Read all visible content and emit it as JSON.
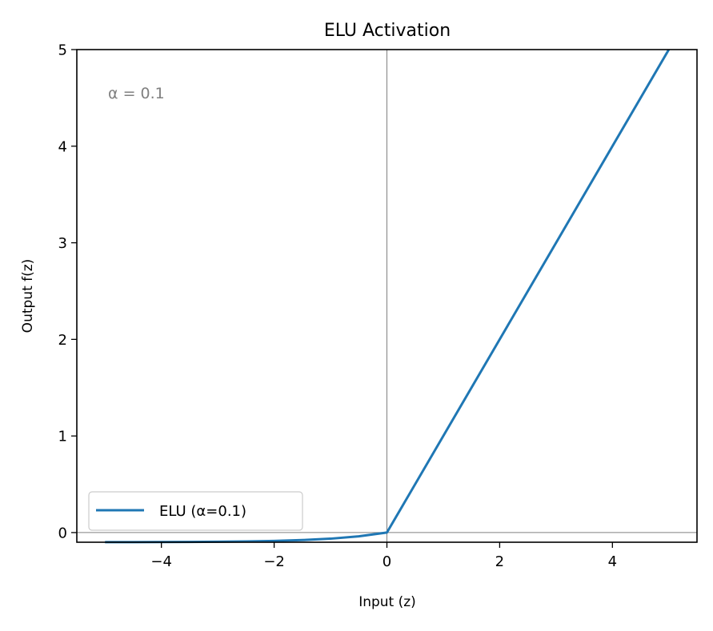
{
  "chart_data": {
    "type": "line",
    "title": "ELU Activation",
    "xlabel": "Input (z)",
    "ylabel": "Output f(z)",
    "xlim": [
      -5.5,
      5.5
    ],
    "ylim": [
      -0.1,
      5
    ],
    "xticks": [
      {
        "value": -4,
        "label": "−4"
      },
      {
        "value": -2,
        "label": "−2"
      },
      {
        "value": 0,
        "label": "0"
      },
      {
        "value": 2,
        "label": "2"
      },
      {
        "value": 4,
        "label": "4"
      }
    ],
    "yticks": [
      {
        "value": 0,
        "label": "0"
      },
      {
        "value": 1,
        "label": "1"
      },
      {
        "value": 2,
        "label": "2"
      },
      {
        "value": 3,
        "label": "3"
      },
      {
        "value": 4,
        "label": "4"
      },
      {
        "value": 5,
        "label": "5"
      }
    ],
    "reference_lines": {
      "x": 0,
      "y": 0,
      "color": "#808080"
    },
    "annotation": "α = 0.1",
    "annotation_color": "#808080",
    "grid": false,
    "legend_position": "lower-left",
    "series": [
      {
        "name": "ELU (α=0.1)",
        "color": "#1f77b4",
        "x": [
          -5,
          -4.5,
          -4,
          -3.5,
          -3,
          -2.5,
          -2,
          -1.5,
          -1,
          -0.5,
          0,
          1,
          2,
          3,
          4,
          5
        ],
        "y": [
          -0.0993,
          -0.0989,
          -0.0982,
          -0.097,
          -0.095,
          -0.0918,
          -0.0865,
          -0.0777,
          -0.0632,
          -0.0393,
          0,
          1,
          2,
          3,
          4,
          5
        ]
      }
    ]
  }
}
